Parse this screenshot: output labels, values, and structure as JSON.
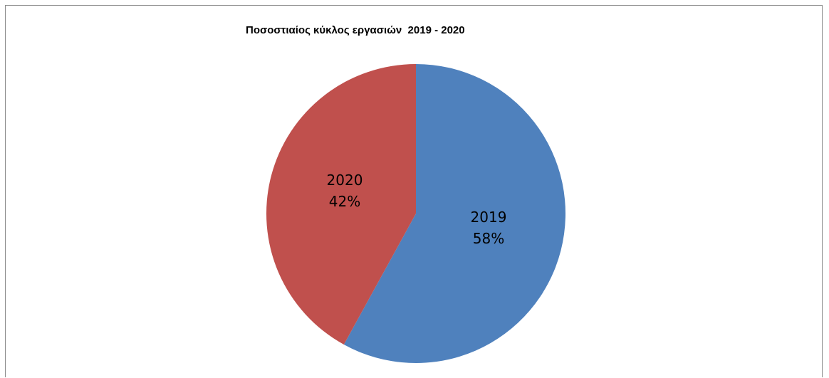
{
  "chart_data": {
    "type": "pie",
    "title": "Ποσοστιαίος κύκλος εργασιών  2019 - 2020",
    "slices": [
      {
        "label": "2019",
        "percent_label": "58%",
        "value": 58,
        "color": "#4f81bd"
      },
      {
        "label": "2020",
        "percent_label": "42%",
        "value": 42,
        "color": "#c0504d"
      }
    ],
    "start_angle": "12 o'clock",
    "direction": "clockwise",
    "legend": "none"
  }
}
